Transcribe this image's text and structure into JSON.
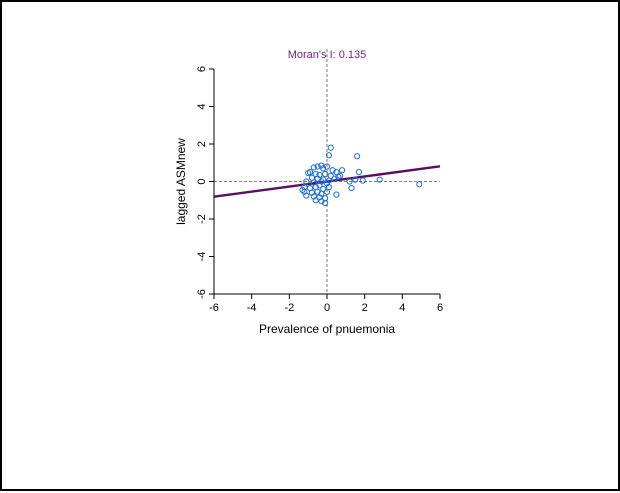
{
  "chart_data": {
    "type": "scatter",
    "title": "Moran's I: 0.135",
    "xlabel": "Prevalence of pnuemonia",
    "ylabel": "lagged ASMnew",
    "xlim": [
      -6,
      6
    ],
    "ylim": [
      -6,
      6
    ],
    "x_ticks": [
      "-6",
      "-4",
      "-2",
      "0",
      "2",
      "4",
      "6"
    ],
    "y_ticks": [
      "-6",
      "-4",
      "-2",
      "0",
      "2",
      "4",
      "6"
    ],
    "grid": false,
    "reference_lines": {
      "x": 0,
      "y": 0
    },
    "regression_line": {
      "slope": 0.135,
      "intercept": 0
    },
    "points": [
      [
        0.2,
        1.8
      ],
      [
        0.1,
        1.4
      ],
      [
        1.6,
        1.35
      ],
      [
        0.8,
        0.6
      ],
      [
        1.7,
        0.5
      ],
      [
        -0.3,
        0.85
      ],
      [
        -0.5,
        0.8
      ],
      [
        -0.7,
        0.75
      ],
      [
        -0.2,
        0.7
      ],
      [
        0.0,
        0.8
      ],
      [
        0.3,
        0.6
      ],
      [
        0.5,
        0.5
      ],
      [
        -0.9,
        0.5
      ],
      [
        -1.0,
        0.45
      ],
      [
        -0.6,
        0.4
      ],
      [
        -0.4,
        0.35
      ],
      [
        -0.1,
        0.4
      ],
      [
        0.2,
        0.3
      ],
      [
        0.6,
        0.25
      ],
      [
        -0.8,
        0.2
      ],
      [
        -0.5,
        0.15
      ],
      [
        -0.2,
        0.1
      ],
      [
        0.1,
        0.05
      ],
      [
        0.4,
        0.15
      ],
      [
        -1.1,
        0.0
      ],
      [
        -0.7,
        -0.05
      ],
      [
        -0.3,
        0.0
      ],
      [
        0.0,
        -0.1
      ],
      [
        1.2,
        0.0
      ],
      [
        1.5,
        0.1
      ],
      [
        1.9,
        0.05
      ],
      [
        2.8,
        0.1
      ],
      [
        4.9,
        -0.15
      ],
      [
        1.3,
        -0.35
      ],
      [
        -1.2,
        -0.3
      ],
      [
        -0.9,
        -0.35
      ],
      [
        -0.6,
        -0.3
      ],
      [
        -0.2,
        -0.4
      ],
      [
        0.1,
        -0.3
      ],
      [
        -1.2,
        -0.55
      ],
      [
        -0.8,
        -0.6
      ],
      [
        -0.5,
        -0.55
      ],
      [
        -0.3,
        -0.65
      ],
      [
        0.0,
        -0.55
      ],
      [
        -1.1,
        -0.75
      ],
      [
        -0.7,
        -0.8
      ],
      [
        -0.4,
        -0.85
      ],
      [
        -0.1,
        -0.9
      ],
      [
        0.5,
        -0.7
      ],
      [
        -0.6,
        -1.0
      ],
      [
        -0.3,
        -1.05
      ],
      [
        -0.1,
        -1.15
      ],
      [
        -1.3,
        -0.45
      ],
      [
        -0.4,
        -0.2
      ],
      [
        0.7,
        0.3
      ]
    ]
  },
  "colors": {
    "title": "#7a1f8c",
    "points": "#1f6fd6",
    "regression": "#5a0f5e",
    "reference": "#555555",
    "axis": "#000000"
  }
}
